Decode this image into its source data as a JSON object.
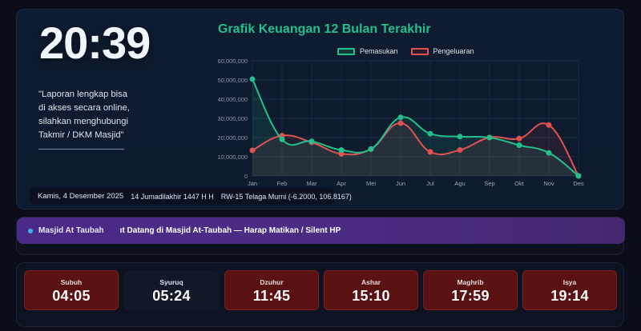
{
  "clock": {
    "time": "20:39"
  },
  "quote": {
    "lines": [
      "\"Laporan lengkap bisa",
      "di akses secara online,",
      "silahkan menghubungi",
      "Takmir / DKM Masjid\""
    ]
  },
  "info_bar": {
    "gregorian_date": "Kamis, 4 Desember 2025",
    "hijri_date": "14 Jumadilakhir 1447 H H",
    "location": "RW-15 Telaga Murni (-6.2000, 106.8167)"
  },
  "colors": {
    "income": "#22c08a",
    "expense": "#e05252",
    "title": "#22c08a",
    "prayer_active_bg": "#5a1112",
    "ticker_bg": "#4a2a86"
  },
  "chart_data": {
    "type": "line",
    "title": "Grafik Keuangan 12 Bulan Terakhir",
    "categories": [
      "Jan",
      "Feb",
      "Mar",
      "Apr",
      "Mei",
      "Jun",
      "Jul",
      "Agu",
      "Sep",
      "Okt",
      "Nov",
      "Des"
    ],
    "series": [
      {
        "name": "Pemasukan",
        "color": "#22c08a",
        "values": [
          50400000,
          19000000,
          18000000,
          13500000,
          14000000,
          30500000,
          22000000,
          20500000,
          20000000,
          16000000,
          12000000,
          0
        ]
      },
      {
        "name": "Pengeluaran",
        "color": "#e05252",
        "values": [
          13300000,
          21000000,
          17500000,
          11500000,
          14000000,
          27500000,
          12500000,
          13500000,
          20000000,
          19500000,
          26500000,
          0
        ]
      }
    ],
    "yticks": [
      "0",
      "10,000,000",
      "20,000,000",
      "30,000,000",
      "40,000,000",
      "50,000,000",
      "60,000,000"
    ],
    "ylim": [
      0,
      60000000
    ],
    "xlabel": "",
    "ylabel": "",
    "grid": true,
    "legend_position": "top",
    "fill": true
  },
  "ticker": {
    "brand": "Masjid At Taubah",
    "message": "ıt Datang di Masjid At-Taubah — Harap Matikan / Silent HP"
  },
  "prayers": [
    {
      "name": "Subuh",
      "time": "04:05",
      "active": true
    },
    {
      "name": "Syuruq",
      "time": "05:24",
      "active": false
    },
    {
      "name": "Dzuhur",
      "time": "11:45",
      "active": true
    },
    {
      "name": "Ashar",
      "time": "15:10",
      "active": true
    },
    {
      "name": "Maghrib",
      "time": "17:59",
      "active": true
    },
    {
      "name": "Isya",
      "time": "19:14",
      "active": true
    }
  ]
}
